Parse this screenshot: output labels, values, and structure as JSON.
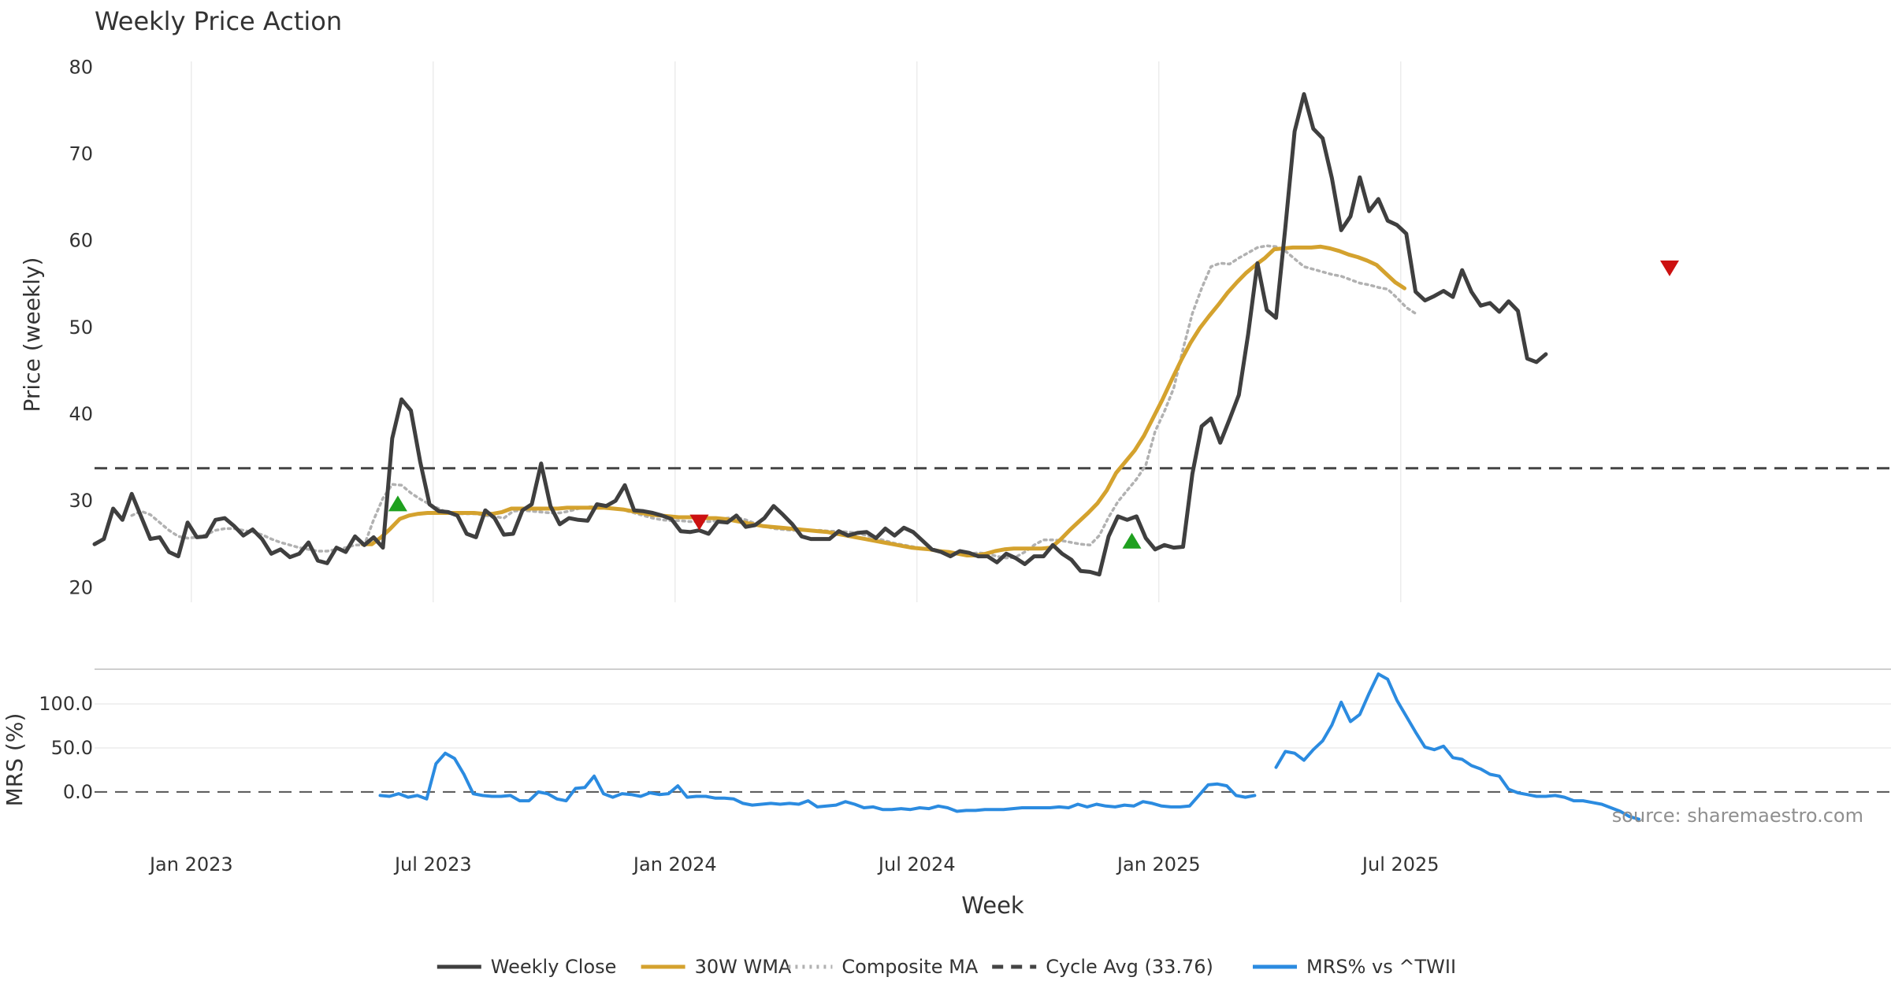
{
  "chart_data": {
    "type": "line",
    "title": "Weekly Price Action",
    "x_label": "Week",
    "x_ticks": [
      "Jan 2023",
      "Jul 2023",
      "Jan 2024",
      "Jul 2024",
      "Jan 2025",
      "Jul 2025"
    ],
    "x_range_weeks": [
      0,
      193.1
    ],
    "tick_weeks": [
      10.4,
      36.4,
      62.4,
      88.4,
      114.4,
      140.4
    ],
    "price_panel": {
      "y_label": "Price (weekly)",
      "y_ticks": [
        20,
        30,
        40,
        50,
        60,
        70,
        80
      ],
      "ylim": [
        18.3,
        80.3
      ],
      "series": [
        {
          "name": "Weekly Close",
          "color": "#3f3f3f",
          "style": "solid",
          "start_week": 0,
          "values": [
            25.0,
            25.6,
            29.1,
            27.8,
            30.8,
            28.2,
            25.6,
            25.8,
            24.1,
            23.6,
            27.5,
            25.8,
            25.9,
            27.8,
            28.0,
            27.1,
            26.0,
            26.7,
            25.6,
            23.9,
            24.4,
            23.5,
            23.9,
            25.2,
            23.1,
            22.8,
            24.6,
            24.1,
            25.9,
            24.9,
            25.8,
            24.6,
            37.2,
            41.7,
            40.4,
            34.5,
            29.6,
            28.8,
            28.7,
            28.3,
            26.2,
            25.8,
            28.9,
            28.0,
            26.1,
            26.2,
            28.9,
            29.6,
            34.3,
            29.4,
            27.3,
            28.0,
            27.8,
            27.7,
            29.6,
            29.4,
            30.0,
            31.8,
            28.9,
            28.8,
            28.6,
            28.3,
            27.9,
            26.5,
            26.4,
            26.6,
            26.2,
            27.6,
            27.5,
            28.3,
            27.0,
            27.2,
            28.0,
            29.4,
            28.4,
            27.3,
            25.9,
            25.6,
            25.6,
            25.6,
            26.5,
            26.0,
            26.3,
            26.4,
            25.7,
            26.8,
            26.0,
            26.9,
            26.4,
            25.4,
            24.4,
            24.1,
            23.6,
            24.2,
            24.0,
            23.6,
            23.6,
            22.9,
            23.9,
            23.4,
            22.7,
            23.6,
            23.6,
            24.9,
            23.9,
            23.2,
            21.9,
            21.8,
            21.5,
            25.9,
            28.2,
            27.8,
            28.2,
            25.7,
            24.4,
            24.9,
            24.6,
            24.7,
            33.1,
            38.6,
            39.5,
            36.7,
            39.4,
            42.2,
            49.2,
            57.4,
            52.0,
            51.1,
            61.5,
            72.6,
            76.9,
            72.9,
            71.8,
            67.2,
            61.2,
            62.8,
            67.3,
            63.4,
            64.8,
            62.3,
            61.8,
            60.8,
            54.1,
            53.1,
            53.6,
            54.2,
            53.5,
            56.6,
            54.1,
            52.5,
            52.8,
            51.8,
            53.0,
            51.9,
            46.4,
            46.0,
            46.9
          ]
        },
        {
          "name": "30W WMA",
          "color": "#d4a22e",
          "style": "solid",
          "start_week": 28.8,
          "values": [
            25.0,
            25.0,
            25.8,
            26.8,
            27.9,
            28.3,
            28.5,
            28.6,
            28.6,
            28.6,
            28.6,
            28.6,
            28.6,
            28.5,
            28.5,
            28.7,
            29.1,
            29.1,
            29.1,
            29.1,
            29.1,
            29.1,
            29.2,
            29.2,
            29.2,
            29.2,
            29.2,
            29.1,
            29.0,
            28.8,
            28.6,
            28.4,
            28.3,
            28.2,
            28.1,
            28.1,
            28.1,
            28.0,
            28.0,
            27.9,
            27.7,
            27.5,
            27.3,
            27.1,
            27.0,
            26.9,
            26.8,
            26.7,
            26.6,
            26.5,
            26.4,
            26.2,
            26.0,
            25.8,
            25.6,
            25.4,
            25.2,
            25.0,
            24.8,
            24.6,
            24.5,
            24.4,
            24.2,
            24.1,
            23.9,
            23.7,
            23.7,
            23.9,
            24.2,
            24.4,
            24.5,
            24.5,
            24.5,
            24.5,
            24.6,
            25.5,
            26.6,
            27.6,
            28.6,
            29.7,
            31.2,
            33.2,
            34.5,
            35.8,
            37.5,
            39.6,
            41.7,
            44.0,
            46.2,
            48.2,
            49.9,
            51.3,
            52.6,
            54.0,
            55.2,
            56.3,
            57.2,
            58.0,
            59.0,
            59.1,
            59.2,
            59.2,
            59.2,
            59.3,
            59.1,
            58.8,
            58.4,
            58.1,
            57.7,
            57.2,
            56.2,
            55.2,
            54.5
          ]
        },
        {
          "name": "Composite MA",
          "color": "#b1b1b1",
          "style": "dotted",
          "start_week": 4,
          "values": [
            28.3,
            28.8,
            28.4,
            27.5,
            26.6,
            25.9,
            25.7,
            25.8,
            26.1,
            26.6,
            26.8,
            26.8,
            26.6,
            26.4,
            26.1,
            25.6,
            25.2,
            24.9,
            24.6,
            24.4,
            24.2,
            24.2,
            24.4,
            24.6,
            24.9,
            24.9,
            27.8,
            30.3,
            31.9,
            31.8,
            30.9,
            30.2,
            29.6,
            29.1,
            28.6,
            28.5,
            28.5,
            28.5,
            28.3,
            28.2,
            28.0,
            28.8,
            28.9,
            28.8,
            28.7,
            28.6,
            28.6,
            28.8,
            29.1,
            29.3,
            29.3,
            29.2,
            29.1,
            28.9,
            28.6,
            28.3,
            28.0,
            27.8,
            27.7,
            27.7,
            27.6,
            27.6,
            27.6,
            27.7,
            28.0,
            28.1,
            27.8,
            27.4,
            27.1,
            26.8,
            26.7,
            26.6,
            26.6,
            26.6,
            26.6,
            26.5,
            26.5,
            26.4,
            26.3,
            26.0,
            25.7,
            25.4,
            25.1,
            24.9,
            24.7,
            24.5,
            24.3,
            24.1,
            24.0,
            23.9,
            23.9,
            24.0,
            23.9,
            23.6,
            23.4,
            23.5,
            24.1,
            24.9,
            25.5,
            25.5,
            25.4,
            25.2,
            25.0,
            24.9,
            26.0,
            28.1,
            29.9,
            31.2,
            32.5,
            34.1,
            38.0,
            40.3,
            43.0,
            47.5,
            51.6,
            54.5,
            57.0,
            57.4,
            57.3,
            58.0,
            58.6,
            59.2,
            59.4,
            59.3,
            58.8,
            57.9,
            57.0,
            56.7,
            56.4,
            56.1,
            55.9,
            55.5,
            55.1,
            54.9,
            54.6,
            54.4,
            53.4,
            52.3,
            51.6
          ]
        },
        {
          "name": "Cycle Avg (33.76)",
          "color": "#444444",
          "style": "dashed",
          "constant": 33.76
        }
      ],
      "markers": [
        {
          "type": "buy",
          "symbol": "triangle-up",
          "color": "#1fa01f",
          "week": 32.6,
          "value": 29.7
        },
        {
          "type": "sell",
          "symbol": "triangle-down",
          "color": "#cc1111",
          "week": 65.0,
          "value": 27.5
        },
        {
          "type": "buy",
          "symbol": "triangle-up",
          "color": "#1fa01f",
          "week": 111.5,
          "value": 25.4
        },
        {
          "type": "sell",
          "symbol": "triangle-down",
          "color": "#cc1111",
          "week": 169.3,
          "value": 56.8
        }
      ]
    },
    "mrs_panel": {
      "y_label": "MRS (%)",
      "y_ticks": [
        "100.0",
        "50.0",
        "0.0"
      ],
      "y_tick_values": [
        100,
        50,
        0
      ],
      "ylim": [
        -35,
        135
      ],
      "zero_line": "dashed",
      "series": [
        {
          "name": "MRS% vs ^TWII",
          "color": "#2b8be0",
          "style": "solid",
          "segments": [
            {
              "start_week": 30.7,
              "values": [
                -4,
                -5,
                -2,
                -6,
                -4,
                -8,
                32,
                44,
                38,
                20,
                -2,
                -4,
                -5,
                -5,
                -4,
                -10,
                -10,
                0,
                -2,
                -8,
                -10,
                4,
                5,
                18,
                -2,
                -6,
                -2,
                -3,
                -5,
                -1,
                -3,
                -2,
                7,
                -6,
                -5,
                -5,
                -7,
                -7,
                -8,
                -13,
                -15,
                -14,
                -13,
                -14,
                -13,
                -14,
                -10,
                -17,
                -16,
                -15,
                -11,
                -14,
                -18,
                -17,
                -20,
                -20,
                -19,
                -20,
                -18,
                -19,
                -16,
                -18,
                -22,
                -21,
                -21,
                -20,
                -20,
                -20,
                -19,
                -18,
                -18,
                -18,
                -18,
                -17,
                -18,
                -14,
                -17,
                -14,
                -16,
                -17,
                -15,
                -16,
                -11,
                -13,
                -16,
                -17,
                -17,
                -16,
                -4,
                8,
                9,
                7,
                -4,
                -6,
                -4
              ]
            },
            {
              "start_week": 127.0,
              "values": [
                28,
                46,
                44,
                36,
                48,
                58,
                76,
                102,
                80,
                88,
                112,
                134,
                128,
                104,
                86,
                68,
                51,
                48,
                52,
                39,
                37,
                30,
                26,
                20,
                18,
                3,
                -1,
                -3,
                -5,
                -5,
                -4,
                -6,
                -10,
                -10,
                -12,
                -14,
                -18,
                -22,
                -28,
                -31
              ]
            }
          ]
        }
      ]
    },
    "legend": {
      "position": "bottom-center",
      "entries": [
        {
          "label": "Weekly Close",
          "color": "#3f3f3f",
          "style": "solid"
        },
        {
          "label": "30W WMA",
          "color": "#d4a22e",
          "style": "solid"
        },
        {
          "label": "Composite MA",
          "color": "#b1b1b1",
          "style": "dotted"
        },
        {
          "label": "Cycle Avg (33.76)",
          "color": "#444444",
          "style": "dashed"
        },
        {
          "label": "MRS% vs ^TWII",
          "color": "#2b8be0",
          "style": "solid"
        }
      ]
    },
    "annotation": "source: sharemaestro.com"
  }
}
